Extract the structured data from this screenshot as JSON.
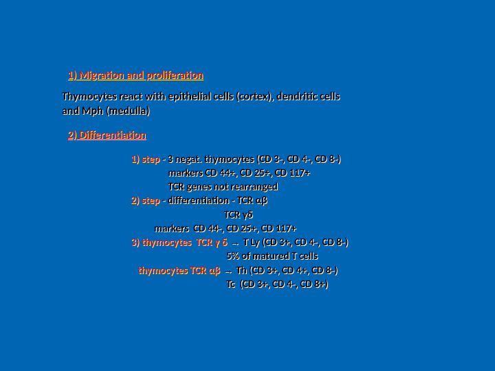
{
  "colors": {
    "background": "#0066b3",
    "heading_color": "#b22222",
    "heading_shadow": "#ffe680",
    "body_color": "#000000",
    "body_shadow": "#ffffff"
  },
  "typography": {
    "font_family": "Calibri, Arial, sans-serif",
    "heading_fontsize": 16,
    "body_fontsize": 16,
    "step_fontsize": 15
  },
  "heading1": "1) Migration and proliferation",
  "body1a": "Thymocytes react with epithelial cells (cortex), dendritic cells",
  "body1b": "and  Mph (medulla)",
  "heading2": "2) Differentiation",
  "step1_label": "1) step",
  "step1_rest": " - 3 negat. thymocytes (CD 3-, CD 4-, CD 8-)",
  "step1_line2": "                markers CD 44+, CD 25+, CD 117+",
  "step1_line3": "                TCR genes not rearranged",
  "step2_label": "2) step",
  "step2_rest": " - differentiation - TCR αβ",
  "step2_line2": "                                        TCR γδ",
  "step2_line3": "          markers  CD 44-, CD 25+, CD 117+",
  "step3_label": "3) thymocytes  TCR γ δ",
  "step3_arrow": " → ",
  "step3_rest": "T Ly (CD 3+, CD 4-, CD 8-)",
  "step3_line2": "                                         5% of matured T cells",
  "step3b_label": "   thymocytes TCR αβ",
  "step3b_arrow": " → ",
  "step3b_rest": "Th (CD 3+, CD 4+, CD 8-)",
  "step3b_line2": "                                         Tc  (CD 3+, CD 4-, CD 8+)"
}
